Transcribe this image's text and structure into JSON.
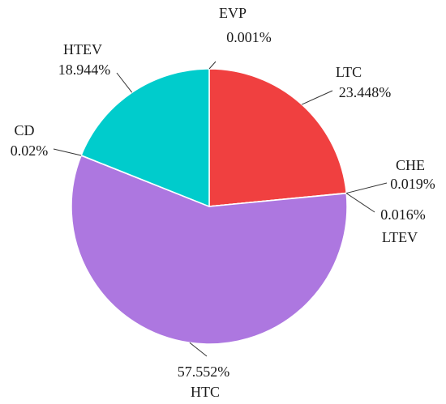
{
  "chart_data": {
    "type": "pie",
    "title": "",
    "start": "12 o'clock",
    "direction": "clockwise",
    "slices": [
      {
        "name": "EVP",
        "value": 0.001,
        "label": "0.001%",
        "color": "#1f4e9c"
      },
      {
        "name": "LTC",
        "value": 23.448,
        "label": "23.448%",
        "color": "#f04040"
      },
      {
        "name": "CHE",
        "value": 0.019,
        "label": "0.019%",
        "color": "#8a6d1f"
      },
      {
        "name": "LTEV",
        "value": 0.016,
        "label": "0.016%",
        "color": "#6aa84f"
      },
      {
        "name": "HTC",
        "value": 57.552,
        "label": "57.552%",
        "color": "#ad77e0"
      },
      {
        "name": "CD",
        "value": 0.02,
        "label": "0.02%",
        "color": "#e69138"
      },
      {
        "name": "HTEV",
        "value": 18.944,
        "label": "18.944%",
        "color": "#00cccc"
      }
    ]
  }
}
